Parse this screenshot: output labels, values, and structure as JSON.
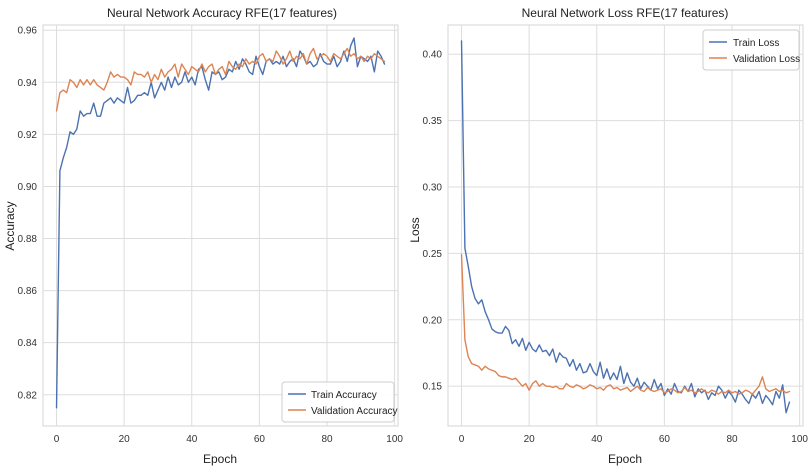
{
  "chart_data": [
    {
      "type": "line",
      "title": "Neural Network Accuracy RFE(17 features)",
      "xlabel": "Epoch",
      "ylabel": "Accuracy",
      "xlim": [
        -4,
        101
      ],
      "ylim": [
        0.808,
        0.962
      ],
      "xticks": [
        0,
        20,
        40,
        60,
        80,
        100
      ],
      "yticks": [
        0.82,
        0.84,
        0.86,
        0.88,
        0.9,
        0.92,
        0.94,
        0.96
      ],
      "ytick_decimals": 2,
      "grid": true,
      "legend_position": "bottom-right",
      "series": [
        {
          "name": "Train Accuracy",
          "color": "#4c72b0",
          "values": [
            0.815,
            0.906,
            0.911,
            0.915,
            0.921,
            0.92,
            0.922,
            0.929,
            0.927,
            0.928,
            0.928,
            0.932,
            0.927,
            0.927,
            0.932,
            0.933,
            0.934,
            0.932,
            0.934,
            0.933,
            0.932,
            0.938,
            0.932,
            0.933,
            0.935,
            0.935,
            0.936,
            0.935,
            0.94,
            0.934,
            0.937,
            0.94,
            0.937,
            0.942,
            0.938,
            0.942,
            0.939,
            0.94,
            0.944,
            0.94,
            0.942,
            0.939,
            0.945,
            0.946,
            0.941,
            0.937,
            0.944,
            0.943,
            0.944,
            0.941,
            0.942,
            0.945,
            0.944,
            0.948,
            0.945,
            0.949,
            0.947,
            0.944,
            0.943,
            0.95,
            0.946,
            0.943,
            0.948,
            0.949,
            0.947,
            0.948,
            0.947,
            0.95,
            0.946,
            0.948,
            0.949,
            0.946,
            0.952,
            0.95,
            0.947,
            0.948,
            0.946,
            0.947,
            0.951,
            0.948,
            0.947,
            0.947,
            0.95,
            0.946,
            0.948,
            0.952,
            0.948,
            0.954,
            0.957,
            0.946,
            0.95,
            0.949,
            0.948,
            0.95,
            0.944,
            0.952,
            0.95,
            0.947
          ]
        },
        {
          "name": "Validation Accuracy",
          "color": "#dd8452",
          "values": [
            0.929,
            0.936,
            0.937,
            0.936,
            0.941,
            0.94,
            0.938,
            0.941,
            0.939,
            0.941,
            0.939,
            0.941,
            0.939,
            0.938,
            0.937,
            0.94,
            0.944,
            0.942,
            0.943,
            0.942,
            0.942,
            0.941,
            0.939,
            0.944,
            0.943,
            0.943,
            0.942,
            0.944,
            0.94,
            0.943,
            0.941,
            0.945,
            0.942,
            0.944,
            0.945,
            0.947,
            0.942,
            0.947,
            0.945,
            0.943,
            0.946,
            0.945,
            0.944,
            0.947,
            0.944,
            0.946,
            0.947,
            0.943,
            0.945,
            0.946,
            0.943,
            0.948,
            0.946,
            0.945,
            0.947,
            0.946,
            0.949,
            0.947,
            0.948,
            0.947,
            0.95,
            0.951,
            0.948,
            0.949,
            0.948,
            0.952,
            0.95,
            0.947,
            0.949,
            0.952,
            0.948,
            0.95,
            0.949,
            0.951,
            0.947,
            0.951,
            0.953,
            0.949,
            0.95,
            0.951,
            0.95,
            0.948,
            0.951,
            0.95,
            0.949,
            0.951,
            0.953,
            0.95,
            0.951,
            0.949,
            0.95,
            0.948,
            0.95,
            0.949,
            0.951,
            0.95,
            0.949,
            0.948
          ]
        }
      ]
    },
    {
      "type": "line",
      "title": "Neural Network Loss RFE(17 features)",
      "xlabel": "Epoch",
      "ylabel": "Loss",
      "xlim": [
        -4,
        101
      ],
      "ylim": [
        0.12,
        0.422
      ],
      "xticks": [
        0,
        20,
        40,
        60,
        80,
        100
      ],
      "yticks": [
        0.15,
        0.2,
        0.25,
        0.3,
        0.35,
        0.4
      ],
      "ytick_decimals": 2,
      "grid": true,
      "legend_position": "top-right",
      "series": [
        {
          "name": "Train Loss",
          "color": "#4c72b0",
          "values": [
            0.41,
            0.254,
            0.24,
            0.225,
            0.216,
            0.212,
            0.215,
            0.206,
            0.2,
            0.193,
            0.191,
            0.19,
            0.19,
            0.195,
            0.192,
            0.182,
            0.185,
            0.18,
            0.186,
            0.177,
            0.183,
            0.178,
            0.176,
            0.181,
            0.176,
            0.177,
            0.173,
            0.178,
            0.168,
            0.175,
            0.172,
            0.171,
            0.165,
            0.17,
            0.162,
            0.167,
            0.16,
            0.161,
            0.167,
            0.161,
            0.158,
            0.168,
            0.156,
            0.163,
            0.155,
            0.16,
            0.155,
            0.165,
            0.152,
            0.16,
            0.153,
            0.15,
            0.156,
            0.148,
            0.153,
            0.15,
            0.147,
            0.155,
            0.148,
            0.152,
            0.143,
            0.148,
            0.144,
            0.152,
            0.146,
            0.145,
            0.15,
            0.146,
            0.152,
            0.142,
            0.148,
            0.145,
            0.147,
            0.14,
            0.145,
            0.143,
            0.15,
            0.147,
            0.141,
            0.146,
            0.143,
            0.138,
            0.147,
            0.144,
            0.14,
            0.137,
            0.144,
            0.141,
            0.146,
            0.137,
            0.143,
            0.14,
            0.136,
            0.146,
            0.141,
            0.151,
            0.13,
            0.138
          ]
        },
        {
          "name": "Validation Loss",
          "color": "#dd8452",
          "values": [
            0.249,
            0.185,
            0.172,
            0.167,
            0.166,
            0.165,
            0.162,
            0.165,
            0.163,
            0.162,
            0.161,
            0.158,
            0.157,
            0.157,
            0.156,
            0.155,
            0.156,
            0.153,
            0.15,
            0.152,
            0.147,
            0.152,
            0.154,
            0.15,
            0.152,
            0.15,
            0.15,
            0.149,
            0.15,
            0.148,
            0.148,
            0.152,
            0.15,
            0.149,
            0.151,
            0.15,
            0.148,
            0.149,
            0.151,
            0.15,
            0.148,
            0.149,
            0.147,
            0.15,
            0.151,
            0.148,
            0.149,
            0.147,
            0.148,
            0.149,
            0.146,
            0.148,
            0.15,
            0.147,
            0.146,
            0.149,
            0.147,
            0.146,
            0.147,
            0.148,
            0.145,
            0.146,
            0.148,
            0.147,
            0.145,
            0.146,
            0.149,
            0.146,
            0.147,
            0.145,
            0.146,
            0.148,
            0.146,
            0.145,
            0.147,
            0.146,
            0.144,
            0.146,
            0.145,
            0.147,
            0.145,
            0.146,
            0.144,
            0.145,
            0.147,
            0.146,
            0.144,
            0.147,
            0.15,
            0.157,
            0.148,
            0.146,
            0.147,
            0.148,
            0.146,
            0.147,
            0.145,
            0.146
          ]
        }
      ]
    }
  ]
}
